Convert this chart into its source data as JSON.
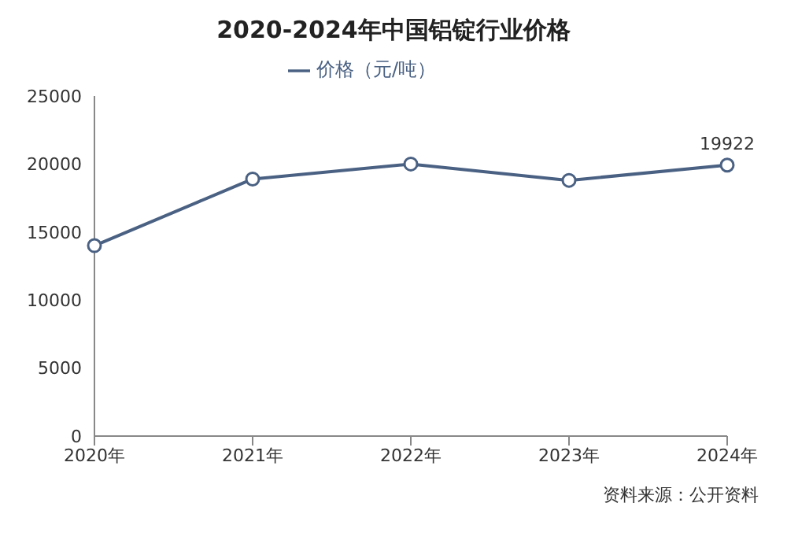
{
  "chart_data": {
    "type": "line",
    "title": "2020-2024年中国铝锭行业价格",
    "categories": [
      "2020年",
      "2021年",
      "2022年",
      "2023年",
      "2024年"
    ],
    "series": [
      {
        "name": "价格（元/吨）",
        "color": "#4a6183",
        "values": [
          14000,
          18900,
          20000,
          18800,
          19922
        ],
        "value_labels": [
          null,
          null,
          null,
          null,
          "19922"
        ]
      }
    ],
    "ylim": [
      0,
      25000
    ],
    "yticks": [
      0,
      5000,
      10000,
      15000,
      20000,
      25000
    ],
    "grid": false,
    "legend": "top",
    "marker": "circle",
    "line_style": "solid",
    "annotations": [
      "资料来源：公开资料"
    ]
  }
}
